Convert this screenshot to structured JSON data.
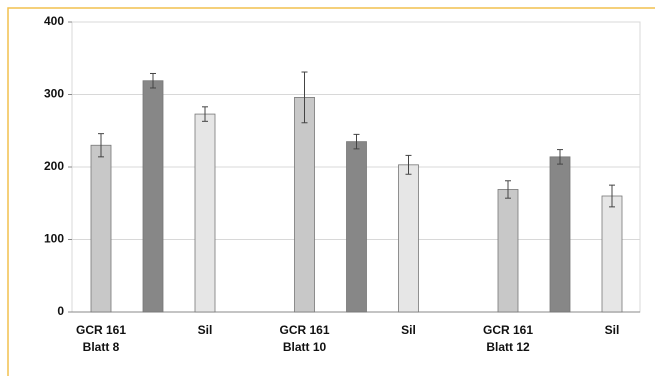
{
  "chart_data": {
    "type": "bar",
    "categories": [
      "GCR 161\nBlatt 8",
      null,
      "Sil",
      "GCR 161\nBlatt 10",
      null,
      "Sil",
      "GCR 161\nBlatt 12",
      null,
      "Sil"
    ],
    "values": [
      230,
      319,
      273,
      296,
      235,
      203,
      169,
      214,
      160
    ],
    "errors": [
      16,
      10,
      10,
      35,
      10,
      13,
      12,
      10,
      15
    ],
    "colors": [
      "#c8c8c8",
      "#878787",
      "#e6e6e6",
      "#c8c8c8",
      "#878787",
      "#e6e6e6",
      "#c8c8c8",
      "#878787",
      "#e6e6e6"
    ],
    "ylim": [
      0,
      400
    ],
    "yticks": [
      0,
      100,
      200,
      300,
      400
    ],
    "grid": true
  }
}
